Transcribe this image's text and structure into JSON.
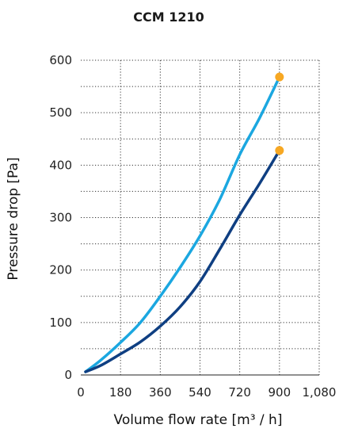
{
  "chart_data": {
    "type": "line",
    "title": "CCM 1210",
    "xlabel": "Volume flow rate [m³ / h]",
    "ylabel": "Pressure drop [Pa]",
    "xlim": [
      0,
      1080
    ],
    "ylim": [
      0,
      600
    ],
    "x_ticks": [
      "0",
      "180",
      "360",
      "540",
      "720",
      "900",
      "1,080"
    ],
    "y_ticks": [
      "0",
      "100",
      "200",
      "300",
      "400",
      "500",
      "600"
    ],
    "grid": true,
    "legend": "none",
    "series": [
      {
        "color": "#1ba7e0",
        "x": [
          0,
          90,
          180,
          270,
          360,
          450,
          540,
          630,
          720,
          810,
          900
        ],
        "y": [
          0,
          28,
          62,
          100,
          150,
          205,
          265,
          335,
          420,
          490,
          568
        ],
        "endpoint": {
          "x": 900,
          "y": 568,
          "color": "#f7a823"
        }
      },
      {
        "color": "#0f3f82",
        "x": [
          0,
          90,
          180,
          270,
          360,
          450,
          540,
          630,
          720,
          810,
          900
        ],
        "y": [
          0,
          18,
          40,
          63,
          93,
          130,
          178,
          240,
          305,
          365,
          428
        ],
        "endpoint": {
          "x": 900,
          "y": 428,
          "color": "#f7a823"
        }
      }
    ]
  }
}
